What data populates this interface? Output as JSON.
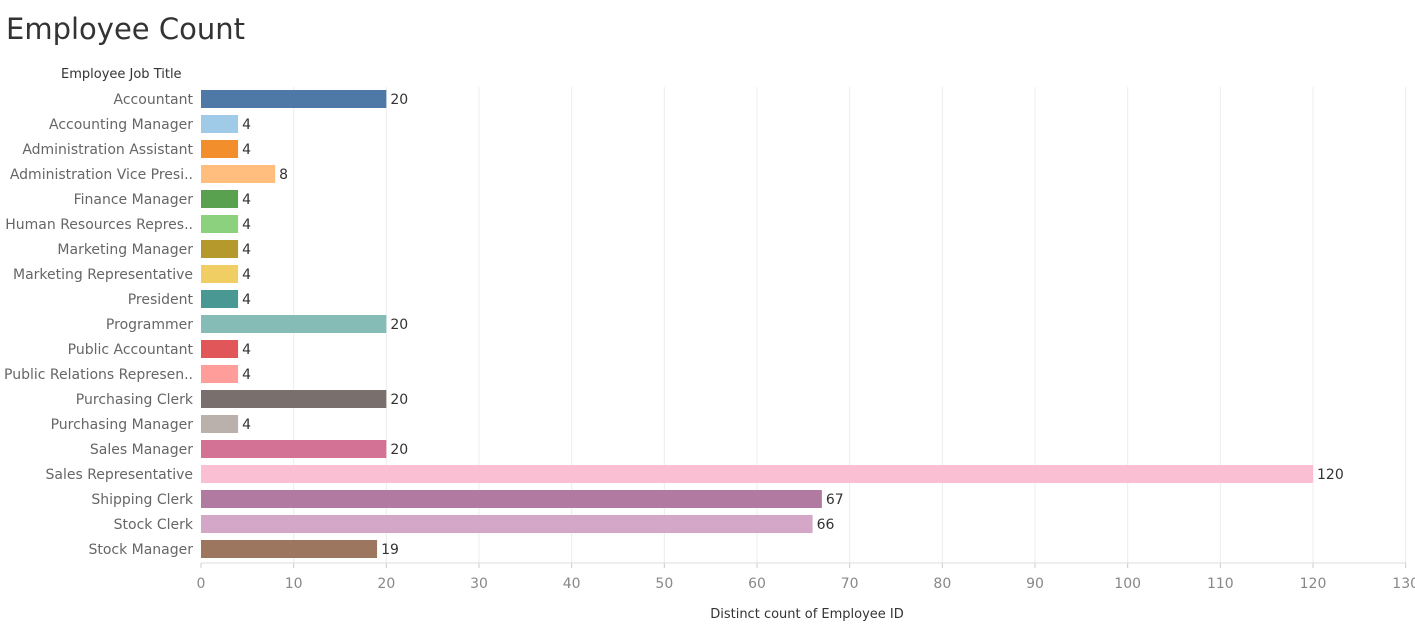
{
  "chart_data": {
    "type": "bar",
    "orientation": "horizontal",
    "title": "Employee Count",
    "category_header": "Employee Job Title",
    "xlabel": "Distinct count of Employee ID",
    "xlim": [
      0,
      130
    ],
    "xticks": [
      0,
      10,
      20,
      30,
      40,
      50,
      60,
      70,
      80,
      90,
      100,
      110,
      120,
      130
    ],
    "grid": true,
    "categories": [
      "Accountant",
      "Accounting Manager",
      "Administration Assistant",
      "Administration Vice Presi..",
      "Finance Manager",
      "Human Resources Repres..",
      "Marketing Manager",
      "Marketing Representative",
      "President",
      "Programmer",
      "Public Accountant",
      "Public Relations Represen..",
      "Purchasing Clerk",
      "Purchasing Manager",
      "Sales Manager",
      "Sales Representative",
      "Shipping Clerk",
      "Stock Clerk",
      "Stock Manager"
    ],
    "values": [
      20,
      4,
      4,
      8,
      4,
      4,
      4,
      4,
      4,
      20,
      4,
      4,
      20,
      4,
      20,
      120,
      67,
      66,
      19
    ],
    "colors": [
      "#4e79a7",
      "#a0cbe8",
      "#f28e2b",
      "#ffbe7d",
      "#59a14f",
      "#8cd17d",
      "#b6992d",
      "#f1ce63",
      "#499894",
      "#86bcb6",
      "#e15759",
      "#ff9d9a",
      "#79706e",
      "#bab0ac",
      "#d37295",
      "#fabfd2",
      "#b07aa1",
      "#d4a6c8",
      "#9d7660"
    ]
  }
}
